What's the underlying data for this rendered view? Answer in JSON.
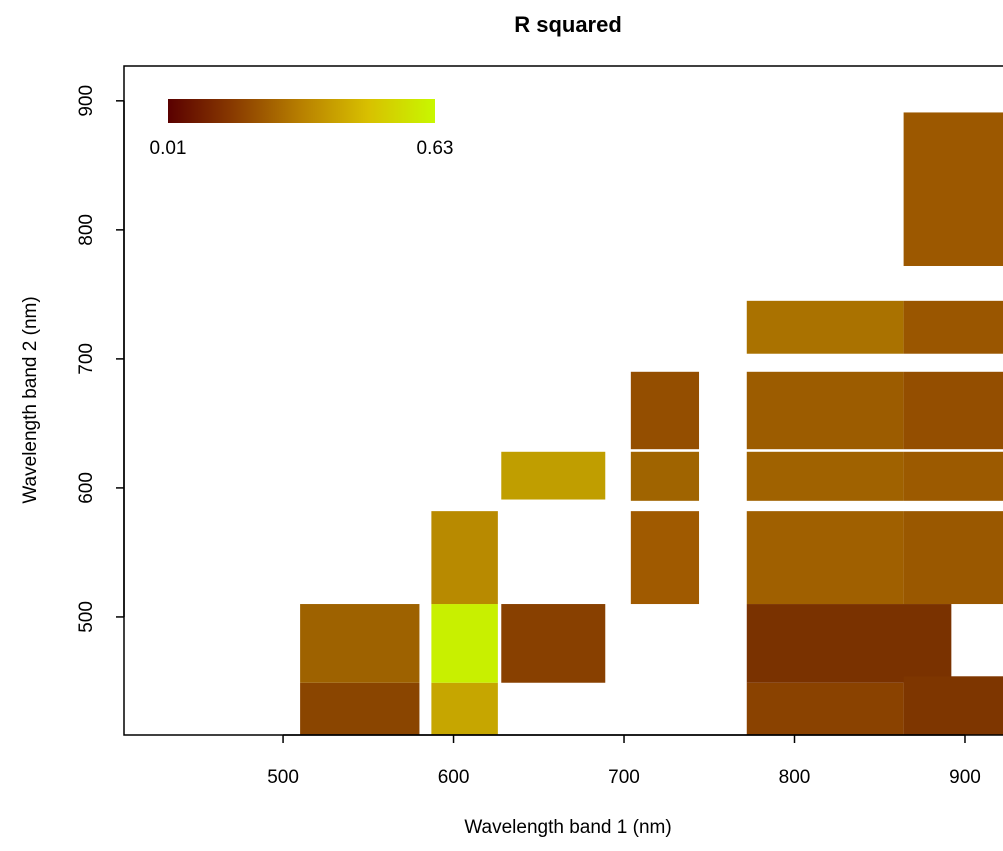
{
  "chart_data": {
    "type": "heatmap",
    "title": "R squared",
    "xlabel": "Wavelength band 1 (nm)",
    "ylabel": "Wavelength band 2 (nm)",
    "xlim": [
      406.7,
      922.3
    ],
    "ylim": [
      408.5,
      927
    ],
    "xticks": [
      500,
      600,
      700,
      800,
      900
    ],
    "yticks": [
      500,
      600,
      700,
      800,
      900
    ],
    "colorbar": {
      "range": [
        0.01,
        0.63
      ],
      "colors": [
        "#5a0000",
        "#8a3c00",
        "#b88000",
        "#d8c000",
        "#c8f800"
      ]
    },
    "cells": [
      {
        "x": [
          510,
          580
        ],
        "y": [
          408,
          449
        ],
        "value": 0.2,
        "color": "#8a4500"
      },
      {
        "x": [
          510,
          580
        ],
        "y": [
          449,
          510
        ],
        "value": 0.3,
        "color": "#9e6200"
      },
      {
        "x": [
          587,
          626
        ],
        "y": [
          408,
          449
        ],
        "value": 0.5,
        "color": "#c6a600"
      },
      {
        "x": [
          587,
          626
        ],
        "y": [
          449,
          510
        ],
        "value": 0.63,
        "color": "#c8f000"
      },
      {
        "x": [
          587,
          626
        ],
        "y": [
          510,
          582
        ],
        "value": 0.42,
        "color": "#b88a00"
      },
      {
        "x": [
          628,
          689
        ],
        "y": [
          449,
          510
        ],
        "value": 0.2,
        "color": "#884000"
      },
      {
        "x": [
          628,
          689
        ],
        "y": [
          591,
          628
        ],
        "value": 0.47,
        "color": "#c09e00"
      },
      {
        "x": [
          704,
          744
        ],
        "y": [
          510,
          582
        ],
        "value": 0.28,
        "color": "#a05a00"
      },
      {
        "x": [
          704,
          744
        ],
        "y": [
          590,
          628
        ],
        "value": 0.3,
        "color": "#a06400"
      },
      {
        "x": [
          704,
          744
        ],
        "y": [
          630,
          690
        ],
        "value": 0.25,
        "color": "#944e00"
      },
      {
        "x": [
          772,
          864
        ],
        "y": [
          408,
          449
        ],
        "value": 0.2,
        "color": "#8a4200"
      },
      {
        "x": [
          772,
          892
        ],
        "y": [
          449,
          510
        ],
        "value": 0.14,
        "color": "#7a3200"
      },
      {
        "x": [
          864,
          955
        ],
        "y": [
          408,
          454
        ],
        "value": 0.15,
        "color": "#7e3600"
      },
      {
        "x": [
          772,
          864
        ],
        "y": [
          510,
          582
        ],
        "value": 0.3,
        "color": "#a06000"
      },
      {
        "x": [
          864,
          955
        ],
        "y": [
          510,
          582
        ],
        "value": 0.27,
        "color": "#9a5800"
      },
      {
        "x": [
          772,
          864
        ],
        "y": [
          590,
          628
        ],
        "value": 0.3,
        "color": "#a06200"
      },
      {
        "x": [
          864,
          955
        ],
        "y": [
          590,
          628
        ],
        "value": 0.28,
        "color": "#9c5a00"
      },
      {
        "x": [
          772,
          864
        ],
        "y": [
          630,
          690
        ],
        "value": 0.28,
        "color": "#9c5c00"
      },
      {
        "x": [
          864,
          955
        ],
        "y": [
          630,
          690
        ],
        "value": 0.25,
        "color": "#944e00"
      },
      {
        "x": [
          772,
          864
        ],
        "y": [
          704,
          745
        ],
        "value": 0.35,
        "color": "#aa7200"
      },
      {
        "x": [
          864,
          955
        ],
        "y": [
          704,
          745
        ],
        "value": 0.27,
        "color": "#9a5600"
      },
      {
        "x": [
          864,
          955
        ],
        "y": [
          772,
          891
        ],
        "value": 0.28,
        "color": "#9c5800"
      }
    ]
  }
}
